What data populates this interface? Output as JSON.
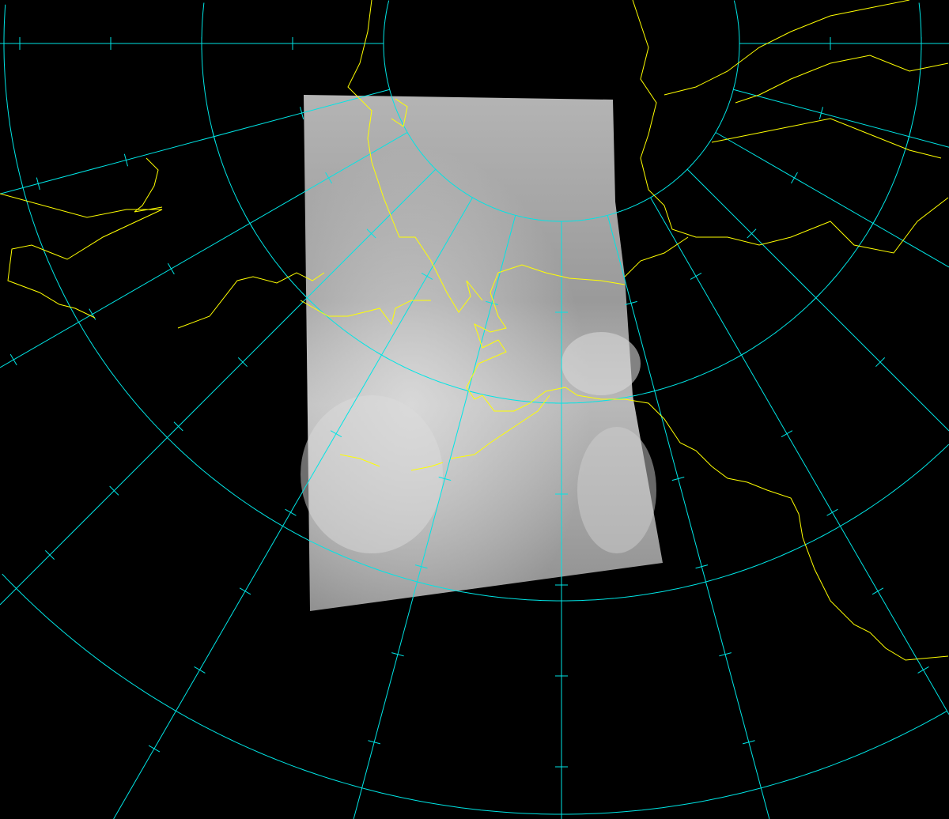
{
  "map": {
    "projection": "polar-stereographic",
    "colors": {
      "background": "#000000",
      "graticule": "#00e5e5",
      "coastline": "#ffff00",
      "imagery": "#a0a0a0"
    },
    "graticule": {
      "meridian_spacing_deg": 15,
      "parallel_count": 4
    },
    "layers": [
      "satellite-imagery-swath",
      "graticule",
      "coastlines"
    ]
  }
}
